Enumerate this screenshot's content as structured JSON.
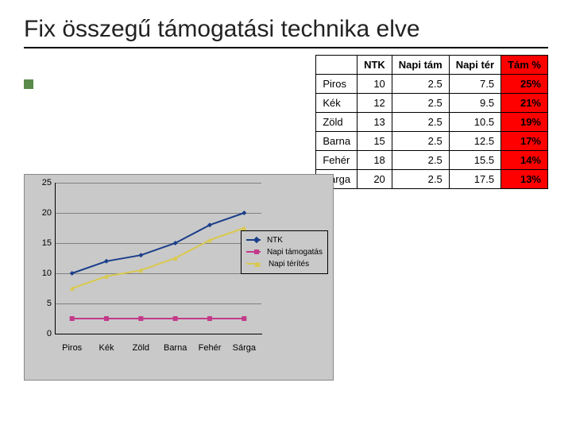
{
  "title": "Fix összegű támogatási technika elve",
  "table": {
    "columns": [
      "",
      "NTK",
      "Napi tám",
      "Napi tér",
      "Tám %"
    ],
    "rows": [
      {
        "label": "Piros",
        "ntk": "10",
        "tam": "2.5",
        "ter": "7.5",
        "pct": "25%"
      },
      {
        "label": "Kék",
        "ntk": "12",
        "tam": "2.5",
        "ter": "9.5",
        "pct": "21%"
      },
      {
        "label": "Zöld",
        "ntk": "13",
        "tam": "2.5",
        "ter": "10.5",
        "pct": "19%"
      },
      {
        "label": "Barna",
        "ntk": "15",
        "tam": "2.5",
        "ter": "12.5",
        "pct": "17%"
      },
      {
        "label": "Fehér",
        "ntk": "18",
        "tam": "2.5",
        "ter": "15.5",
        "pct": "14%"
      },
      {
        "label": "Sárga",
        "ntk": "20",
        "tam": "2.5",
        "ter": "17.5",
        "pct": "13%"
      }
    ],
    "highlight_col_bg": "#ff0000"
  },
  "chart": {
    "type": "line",
    "background_color": "#c9c9c9",
    "categories": [
      "Piros",
      "Kék",
      "Zöld",
      "Barna",
      "Fehér",
      "Sárga"
    ],
    "series": [
      {
        "name": "NTK",
        "values": [
          10,
          12,
          13,
          15,
          18,
          20
        ],
        "color": "#1b3f8b",
        "marker": "diamond"
      },
      {
        "name": "Napi támogatás",
        "values": [
          2.5,
          2.5,
          2.5,
          2.5,
          2.5,
          2.5
        ],
        "color": "#c33a8a",
        "marker": "square"
      },
      {
        "name": "Napi térítés",
        "values": [
          7.5,
          9.5,
          10.5,
          12.5,
          15.5,
          17.5
        ],
        "color": "#d9c94e",
        "marker": "triangle"
      }
    ],
    "ylim": [
      0,
      25
    ],
    "ytick_step": 5,
    "grid_color": "#808080",
    "axis_color": "#000000",
    "label_fontsize": 11,
    "line_width": 2,
    "marker_size": 6
  }
}
